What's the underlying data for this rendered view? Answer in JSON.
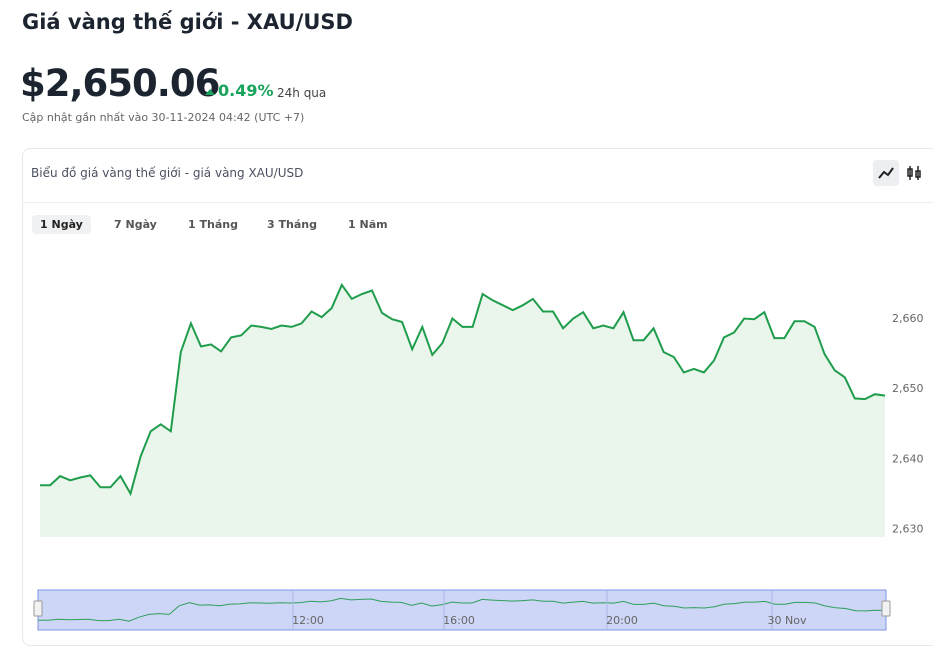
{
  "header": {
    "title": "Giá vàng thế giới - XAU/USD",
    "price": "$2,650.06",
    "change": "0.49%",
    "period": "24h qua",
    "updated": "Cập nhật gần nhất vào 30-11-2024 04:42 (UTC +7)"
  },
  "card": {
    "title": "Biểu đồ giá vàng thế giới - giá vàng XAU/USD",
    "tabs": [
      "1 Ngày",
      "7 Ngày",
      "1 Tháng",
      "3 Tháng",
      "1 Năm"
    ]
  },
  "chart_data": {
    "type": "area",
    "color": "#1f9d4c",
    "values": [
      2636.3,
      2636.3,
      2637.6,
      2637.0,
      2637.4,
      2637.7,
      2636.0,
      2636.0,
      2637.6,
      2635.1,
      2640.4,
      2644.0,
      2645.0,
      2644.0,
      2655.3,
      2659.4,
      2656.1,
      2656.4,
      2655.4,
      2657.4,
      2657.7,
      2659.1,
      2658.9,
      2658.6,
      2659.1,
      2658.9,
      2659.4,
      2661.1,
      2660.3,
      2661.6,
      2664.9,
      2662.9,
      2663.6,
      2664.1,
      2660.9,
      2660.0,
      2659.6,
      2655.7,
      2658.9,
      2654.9,
      2656.6,
      2660.1,
      2658.9,
      2658.9,
      2663.6,
      2662.7,
      2662.0,
      2661.3,
      2662.0,
      2662.9,
      2661.1,
      2661.1,
      2658.7,
      2660.1,
      2661.0,
      2658.7,
      2659.1,
      2658.7,
      2661.0,
      2657.0,
      2657.0,
      2658.7,
      2655.3,
      2654.6,
      2652.4,
      2652.9,
      2652.4,
      2654.1,
      2657.4,
      2658.1,
      2660.1,
      2660.0,
      2661.0,
      2657.3,
      2657.3,
      2659.7,
      2659.7,
      2658.9,
      2655.0,
      2652.7,
      2651.7,
      2648.7,
      2648.6,
      2649.3,
      2649.1
    ],
    "ylim": [
      2628.9,
      2670.6
    ],
    "yticks": [
      {
        "value": 2630,
        "label": "2,630"
      },
      {
        "value": 2640,
        "label": "2,640"
      },
      {
        "value": 2650,
        "label": "2,650"
      },
      {
        "value": 2660,
        "label": "2,660"
      }
    ],
    "navigator_labels": [
      "12:00",
      "16:00",
      "20:00",
      "30 Nov"
    ]
  }
}
